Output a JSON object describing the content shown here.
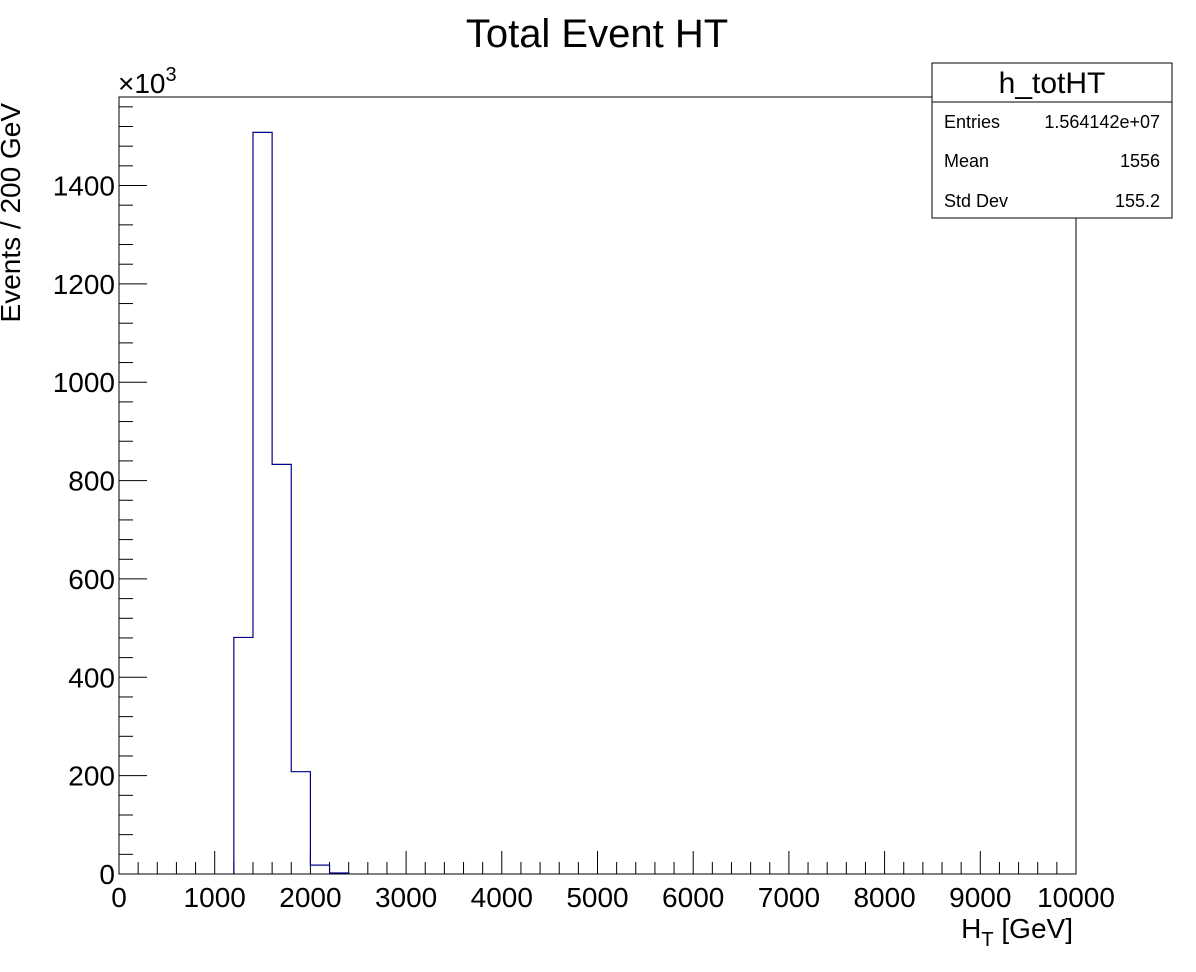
{
  "chart_data": {
    "type": "bar",
    "title": "Total Event HT",
    "xlabel_main": "H",
    "xlabel_sub": "T",
    "xlabel_rest": " [GeV]",
    "ylabel": "Events / 200 GeV",
    "y_multiplier_base": "×10",
    "y_multiplier_exp": "3",
    "xlim": [
      0,
      10000
    ],
    "ylim": [
      0,
      1580
    ],
    "bin_width": 200,
    "x_ticks": [
      0,
      1000,
      2000,
      3000,
      4000,
      5000,
      6000,
      7000,
      8000,
      9000,
      10000
    ],
    "y_ticks": [
      0,
      200,
      400,
      600,
      800,
      1000,
      1200,
      1400
    ],
    "bins": [
      {
        "x0": 1200,
        "x1": 1400,
        "value": 481
      },
      {
        "x0": 1400,
        "x1": 1600,
        "value": 1508
      },
      {
        "x0": 1600,
        "x1": 1800,
        "value": 833
      },
      {
        "x0": 1800,
        "x1": 2000,
        "value": 208
      },
      {
        "x0": 2000,
        "x1": 2200,
        "value": 18
      },
      {
        "x0": 2200,
        "x1": 2400,
        "value": 2
      }
    ],
    "line_color": "#00008b",
    "stats": {
      "name": "h_totHT",
      "rows": [
        {
          "label": "Entries",
          "value": "1.564142e+07"
        },
        {
          "label": "Mean",
          "value": "1556"
        },
        {
          "label": "Std Dev",
          "value": "155.2"
        }
      ]
    }
  }
}
